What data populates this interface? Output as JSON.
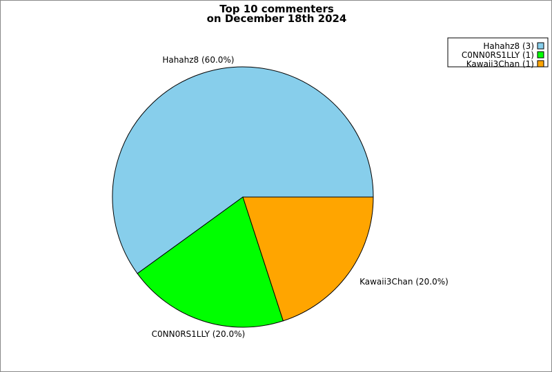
{
  "chart_data": {
    "type": "pie",
    "title_lines": [
      "Top 10 commenters",
      "on December 18th 2024"
    ],
    "slices": [
      {
        "label": "Hahahz8",
        "value": 3,
        "percent_label": "Hahahz8 (60.0%)",
        "legend_label": "Hahahz8 (3)",
        "color": "#87CEEB"
      },
      {
        "label": "C0NN0RS1LLY",
        "value": 1,
        "percent_label": "C0NN0RS1LLY (20.0%)",
        "legend_label": "C0NN0RS1LLY (1)",
        "color": "#00FF00"
      },
      {
        "label": "Kawaii3Chan",
        "value": 1,
        "percent_label": "Kawaii3Chan (20.0%)",
        "legend_label": "Kawaii3Chan (1)",
        "color": "#FFA500"
      }
    ],
    "legend_position": "top-right",
    "start_angle": "east, counterclockwise"
  }
}
